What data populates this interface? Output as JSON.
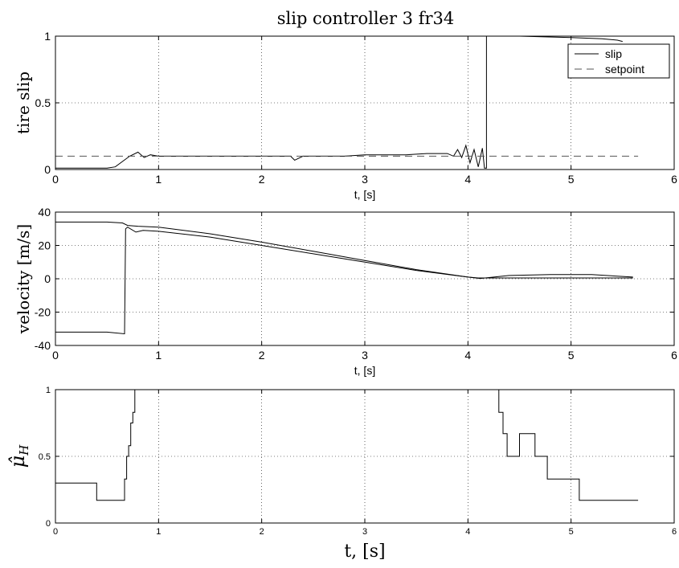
{
  "title": "slip controller 3 fr34",
  "chart_data": [
    {
      "type": "line",
      "xlabel": "t, [s]",
      "ylabel": "tire slip",
      "xlim": [
        0,
        6
      ],
      "ylim": [
        0,
        1
      ],
      "xticks": [
        "0",
        "1",
        "2",
        "3",
        "4",
        "5",
        "6"
      ],
      "yticks": [
        "0",
        "0.5",
        "1"
      ],
      "grid": true,
      "legend": {
        "placement": "top-right",
        "entries": [
          "slip",
          "setpoint"
        ]
      },
      "series": [
        {
          "name": "slip",
          "style": "solid",
          "x": [
            0,
            0.5,
            0.58,
            0.65,
            0.72,
            0.8,
            0.86,
            0.92,
            1.0,
            1.2,
            1.4,
            1.6,
            1.8,
            2.0,
            2.2,
            2.28,
            2.32,
            2.4,
            2.6,
            2.8,
            3.0,
            3.2,
            3.4,
            3.6,
            3.8,
            3.86,
            3.9,
            3.94,
            3.98,
            4.02,
            4.06,
            4.1,
            4.14,
            4.16,
            4.17,
            4.18,
            4.18,
            4.5,
            5.0,
            5.3,
            5.45,
            5.5
          ],
          "y": [
            0.01,
            0.01,
            0.02,
            0.06,
            0.1,
            0.13,
            0.09,
            0.11,
            0.1,
            0.1,
            0.1,
            0.1,
            0.1,
            0.1,
            0.1,
            0.1,
            0.07,
            0.1,
            0.1,
            0.1,
            0.11,
            0.11,
            0.11,
            0.12,
            0.12,
            0.1,
            0.15,
            0.09,
            0.18,
            0.05,
            0.15,
            0.02,
            0.16,
            0.01,
            0.01,
            0.01,
            1.0,
            1.0,
            0.99,
            0.98,
            0.97,
            0.96
          ]
        },
        {
          "name": "setpoint",
          "style": "dashed",
          "x": [
            0,
            5.65
          ],
          "y": [
            0.1,
            0.1
          ]
        }
      ]
    },
    {
      "type": "line",
      "xlabel": "t, [s]",
      "ylabel": "velocity [m/s]",
      "xlim": [
        0,
        6
      ],
      "ylim": [
        -40,
        40
      ],
      "xticks": [
        "0",
        "1",
        "2",
        "3",
        "4",
        "5",
        "6"
      ],
      "yticks": [
        "-40",
        "-20",
        "0",
        "20",
        "40"
      ],
      "grid": true,
      "series": [
        {
          "style": "solid",
          "x": [
            0,
            0.5,
            0.65,
            0.7,
            0.8,
            1.0,
            1.5,
            2.0,
            2.5,
            3.0,
            3.5,
            4.0,
            4.1,
            4.5,
            5.0,
            5.6
          ],
          "y": [
            34,
            34,
            33.5,
            32,
            31.5,
            31,
            27,
            22,
            16.5,
            11,
            5.5,
            1,
            0.5,
            0.5,
            0.5,
            0.5
          ]
        },
        {
          "style": "solid",
          "x": [
            0,
            0.5,
            0.67,
            0.68,
            0.7,
            0.78,
            0.85,
            1.0,
            1.5,
            2.0,
            2.5,
            3.0,
            3.5,
            4.0,
            4.12,
            4.4,
            4.8,
            5.2,
            5.6
          ],
          "y": [
            -32,
            -32,
            -33,
            30,
            31,
            28,
            29,
            28.5,
            25,
            20,
            15,
            10,
            5,
            1,
            0.2,
            2,
            2.5,
            2.5,
            1
          ]
        }
      ]
    },
    {
      "type": "line",
      "xlabel": "t, [s]",
      "ylabel": "μ̂_H",
      "xlim": [
        0,
        6
      ],
      "ylim": [
        0,
        1
      ],
      "xticks": [
        "0",
        "1",
        "2",
        "3",
        "4",
        "5",
        "6"
      ],
      "yticks": [
        "0",
        "0.5",
        "1"
      ],
      "grid": true,
      "series": [
        {
          "style": "step",
          "x": [
            0,
            0.4,
            0.4,
            0.67,
            0.67,
            0.69,
            0.69,
            0.71,
            0.71,
            0.73,
            0.73,
            0.75,
            0.75,
            0.77,
            0.77,
            4.3,
            4.3,
            4.34,
            4.34,
            4.38,
            4.38,
            4.5,
            4.5,
            4.65,
            4.65,
            4.77,
            4.77,
            5.08,
            5.08,
            5.65
          ],
          "y": [
            0.3,
            0.3,
            0.17,
            0.17,
            0.33,
            0.33,
            0.5,
            0.5,
            0.58,
            0.58,
            0.75,
            0.75,
            0.83,
            0.83,
            1.0,
            1.0,
            0.83,
            0.83,
            0.67,
            0.67,
            0.5,
            0.5,
            0.67,
            0.67,
            0.5,
            0.5,
            0.33,
            0.33,
            0.17,
            0.17
          ]
        }
      ]
    }
  ]
}
